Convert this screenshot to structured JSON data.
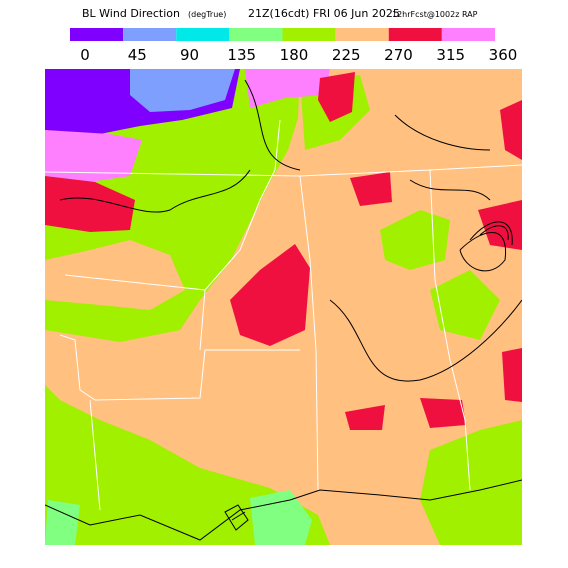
{
  "header": {
    "title": "BL Wind Direction",
    "units": "(degTrue)",
    "valid": "21Z(16cdt) FRI 06 Jun 2025",
    "model": "12hrFcst@1002z RAP"
  },
  "colorbar": {
    "labels": [
      "0",
      "45",
      "90",
      "135",
      "180",
      "225",
      "270",
      "315",
      "360"
    ],
    "colors": [
      "#8000ff",
      "#7f9fff",
      "#00e8e8",
      "#80ff80",
      "#a0f000",
      "#ffc080",
      "#f01040",
      "#ff80ff"
    ]
  }
}
